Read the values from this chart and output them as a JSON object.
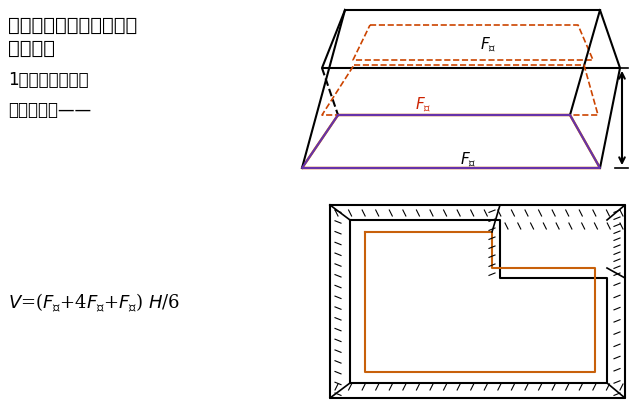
{
  "bg_color": "#ffffff",
  "title_line1": "一、基坑、基槽、路堤土",
  "title_line2": "方量计算",
  "subtitle1": "1、基坑土方量：",
  "subtitle2": "按拟柱体法——",
  "formula": "V=(F_下+4F_中+F_上) H/6",
  "text_color": "#000000",
  "orange_color": "#c8600a",
  "purple_color": "#6633aa",
  "red_color": "#cc2200",
  "dashed_red": "#cc4400",
  "arrow_color": "#000000"
}
